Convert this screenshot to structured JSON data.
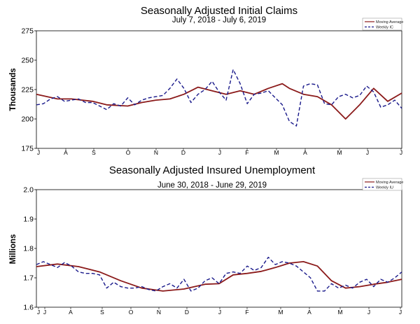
{
  "chart_data": [
    {
      "type": "line",
      "title": "Seasonally Adjusted Initial Claims",
      "subtitle": "July 7, 2018 - July 6, 2019",
      "ylabel": "Thousands",
      "ylim": [
        175,
        275
      ],
      "yticks": [
        "275",
        "250",
        "225",
        "200",
        "175"
      ],
      "month_labels": [
        "J",
        "A",
        "S",
        "O",
        "N",
        "D",
        "J",
        "F",
        "M",
        "A",
        "M",
        "J",
        "J"
      ],
      "legend": [
        "Moving Average",
        "Weekly IC"
      ],
      "colors": {
        "moving_average": "#8b1a1a",
        "weekly": "#1a1a8b"
      },
      "x_range": [
        0,
        52
      ],
      "series": [
        {
          "name": "Moving Average",
          "x": [
            0,
            3,
            5,
            8,
            10,
            13,
            15,
            17,
            19,
            21,
            23,
            25,
            27,
            29,
            31,
            33,
            35,
            36,
            38,
            40,
            42,
            44,
            46,
            48,
            50,
            52
          ],
          "values": [
            221,
            217,
            217,
            215,
            212,
            211,
            214,
            216,
            217,
            221,
            227,
            224,
            221,
            224,
            221,
            226,
            230,
            226,
            221,
            219,
            212,
            200,
            212,
            226,
            215,
            222
          ]
        },
        {
          "name": "Weekly IC",
          "x": [
            0,
            1,
            2,
            3,
            4,
            5,
            6,
            7,
            8,
            9,
            10,
            11,
            12,
            13,
            14,
            15,
            16,
            17,
            18,
            19,
            20,
            21,
            22,
            23,
            24,
            25,
            26,
            27,
            28,
            29,
            30,
            31,
            32,
            33,
            34,
            35,
            36,
            37,
            38,
            39,
            40,
            41,
            42,
            43,
            44,
            45,
            46,
            47,
            48,
            49,
            50,
            51,
            52
          ],
          "values": [
            212,
            213,
            217,
            219,
            215,
            216,
            217,
            214,
            214,
            211,
            208,
            213,
            211,
            218,
            212,
            216,
            218,
            219,
            220,
            226,
            234,
            226,
            214,
            221,
            225,
            232,
            223,
            216,
            242,
            230,
            213,
            221,
            222,
            224,
            218,
            212,
            198,
            194,
            228,
            230,
            229,
            213,
            212,
            219,
            221,
            218,
            220,
            228,
            223,
            210,
            212,
            216,
            209
          ]
        }
      ]
    },
    {
      "type": "line",
      "title": "Seasonally Adjusted Insured Unemployment",
      "subtitle": "June 30, 2018 - June 29, 2019",
      "ylabel": "Millions",
      "ylim": [
        1.6,
        2.0
      ],
      "yticks": [
        "2.0",
        "1.9",
        "1.8",
        "1.7",
        "1.6"
      ],
      "month_labels": [
        "J",
        "J",
        "A",
        "S",
        "O",
        "N",
        "D",
        "J",
        "F",
        "M",
        "A",
        "M",
        "J",
        "J"
      ],
      "legend": [
        "Moving Average",
        "Weekly IU"
      ],
      "colors": {
        "moving_average": "#8b1a1a",
        "weekly": "#1a1a8b"
      },
      "x_range": [
        0,
        52
      ],
      "series": [
        {
          "name": "Moving Average",
          "x": [
            0,
            3,
            6,
            9,
            12,
            15,
            18,
            21,
            24,
            26,
            28,
            30,
            32,
            34,
            36,
            38,
            40,
            42,
            44,
            46,
            48,
            50,
            52
          ],
          "values": [
            1.738,
            1.747,
            1.738,
            1.72,
            1.69,
            1.665,
            1.655,
            1.662,
            1.678,
            1.68,
            1.71,
            1.715,
            1.722,
            1.735,
            1.75,
            1.755,
            1.74,
            1.69,
            1.665,
            1.67,
            1.678,
            1.685,
            1.695
          ]
        },
        {
          "name": "Weekly IU",
          "x": [
            0,
            1,
            2,
            3,
            4,
            5,
            6,
            7,
            8,
            9,
            10,
            11,
            12,
            13,
            14,
            15,
            16,
            17,
            18,
            19,
            20,
            21,
            22,
            23,
            24,
            25,
            26,
            27,
            28,
            29,
            30,
            31,
            32,
            33,
            34,
            35,
            36,
            37,
            38,
            39,
            40,
            41,
            42,
            43,
            44,
            45,
            46,
            47,
            48,
            49,
            50,
            51,
            52
          ],
          "values": [
            1.745,
            1.755,
            1.745,
            1.735,
            1.752,
            1.74,
            1.72,
            1.715,
            1.715,
            1.71,
            1.665,
            1.685,
            1.67,
            1.665,
            1.665,
            1.67,
            1.66,
            1.655,
            1.67,
            1.68,
            1.665,
            1.695,
            1.655,
            1.665,
            1.69,
            1.7,
            1.68,
            1.715,
            1.72,
            1.715,
            1.74,
            1.725,
            1.735,
            1.77,
            1.745,
            1.755,
            1.75,
            1.74,
            1.72,
            1.7,
            1.655,
            1.655,
            1.68,
            1.665,
            1.675,
            1.665,
            1.685,
            1.695,
            1.67,
            1.695,
            1.685,
            1.7,
            1.72
          ]
        }
      ]
    }
  ]
}
